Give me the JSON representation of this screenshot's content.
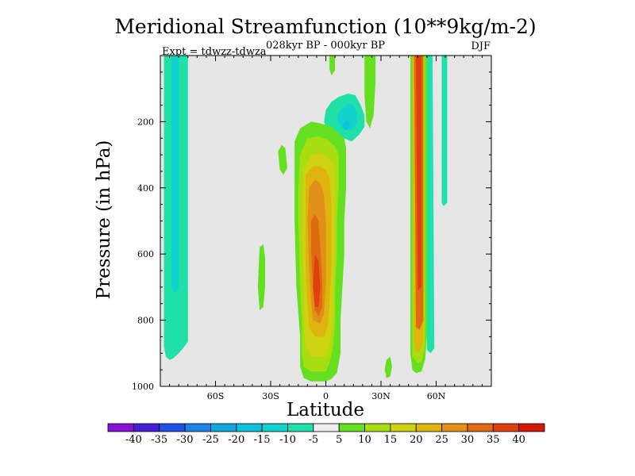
{
  "chart_data": {
    "type": "heatmap",
    "title": "Meridional Streamfunction (10**9kg/m-2)",
    "subtitle": "028kyr BP - 000kyr BP",
    "left_note": "Expt = tdwzz-tdwza",
    "season": "DJF",
    "xlabel": "Latitude",
    "ylabel": "Pressure (in hPa)",
    "xlim": [
      -90,
      90
    ],
    "ylim": [
      0,
      1000
    ],
    "y_reversed": true,
    "x_ticks": [
      {
        "value": -60,
        "label": "60S"
      },
      {
        "value": -30,
        "label": "30S"
      },
      {
        "value": 0,
        "label": "0"
      },
      {
        "value": 30,
        "label": "30N"
      },
      {
        "value": 60,
        "label": "60N"
      }
    ],
    "y_ticks": [
      {
        "value": 200,
        "label": "200"
      },
      {
        "value": 400,
        "label": "400"
      },
      {
        "value": 600,
        "label": "600"
      },
      {
        "value": 800,
        "label": "800"
      },
      {
        "value": 1000,
        "label": "1000"
      }
    ],
    "background_color": "#e6e6e6",
    "colorbar": {
      "labels": [
        "-40",
        "-35",
        "-30",
        "-25",
        "-20",
        "-15",
        "-10",
        "-5",
        "5",
        "10",
        "15",
        "20",
        "25",
        "30",
        "35",
        "40"
      ],
      "colors": [
        "#8a12d6",
        "#4520d8",
        "#2050e6",
        "#1f82e6",
        "#11a8e0",
        "#0dc0dc",
        "#11d2cc",
        "#1ee0a8",
        "#eeeeee",
        "#64e020",
        "#a6de12",
        "#cdd211",
        "#e0b40e",
        "#e09018",
        "#e06a12",
        "#e04010",
        "#d61a0a"
      ]
    },
    "contour_regions": [
      {
        "name": "sh-polar-cell",
        "value": -10,
        "points": [
          [
            -88,
            0
          ],
          [
            -75,
            0
          ],
          [
            -75,
            865
          ],
          [
            -77,
            880
          ],
          [
            -80,
            900
          ],
          [
            -83,
            915
          ],
          [
            -85,
            920
          ],
          [
            -87,
            910
          ],
          [
            -88,
            880
          ]
        ]
      },
      {
        "name": "sh-polar-core",
        "value": -15,
        "points": [
          [
            -84,
            0
          ],
          [
            -80,
            0
          ],
          [
            -80,
            700
          ],
          [
            -82,
            720
          ],
          [
            -84,
            700
          ]
        ]
      },
      {
        "name": "tropical-upper",
        "value": -10,
        "points": [
          [
            -1,
            200
          ],
          [
            0,
            165
          ],
          [
            3,
            140
          ],
          [
            7,
            125
          ],
          [
            12,
            115
          ],
          [
            16,
            120
          ],
          [
            19,
            150
          ],
          [
            21,
            180
          ],
          [
            21,
            215
          ],
          [
            18,
            240
          ],
          [
            14,
            260
          ],
          [
            10,
            250
          ],
          [
            5,
            245
          ],
          [
            1,
            230
          ]
        ]
      },
      {
        "name": "tropical-upper-mid",
        "value": -15,
        "points": [
          [
            6,
            180
          ],
          [
            9,
            160
          ],
          [
            12,
            145
          ],
          [
            15,
            150
          ],
          [
            17,
            175
          ],
          [
            17,
            205
          ],
          [
            14,
            225
          ],
          [
            10,
            225
          ],
          [
            7,
            205
          ]
        ]
      },
      {
        "name": "tropical-upper-core",
        "value": -20,
        "points": [
          [
            9,
            210
          ],
          [
            11,
            197
          ],
          [
            13,
            203
          ],
          [
            12,
            225
          ],
          [
            10,
            225
          ]
        ]
      },
      {
        "name": "nh-thin-cell",
        "value": -10,
        "points": [
          [
            55,
            0
          ],
          [
            58,
            0
          ],
          [
            59,
            885
          ],
          [
            57,
            900
          ],
          [
            55,
            890
          ]
        ]
      },
      {
        "name": "nh-thin-cell-east",
        "value": -10,
        "points": [
          [
            63,
            0
          ],
          [
            66,
            0
          ],
          [
            66,
            445
          ],
          [
            64,
            455
          ],
          [
            63,
            445
          ]
        ]
      },
      {
        "name": "hadley-cell",
        "value": 5,
        "points": [
          [
            -17,
            260
          ],
          [
            -14,
            220
          ],
          [
            -8,
            200
          ],
          [
            -3,
            205
          ],
          [
            3,
            215
          ],
          [
            7,
            235
          ],
          [
            10,
            250
          ],
          [
            11,
            280
          ],
          [
            11,
            400
          ],
          [
            10,
            500
          ],
          [
            10,
            600
          ],
          [
            9,
            700
          ],
          [
            8,
            800
          ],
          [
            8,
            900
          ],
          [
            6,
            960
          ],
          [
            3,
            978
          ],
          [
            0,
            985
          ],
          [
            -8,
            985
          ],
          [
            -12,
            975
          ],
          [
            -14,
            940
          ],
          [
            -14,
            850
          ],
          [
            -16,
            700
          ],
          [
            -17,
            500
          ]
        ]
      },
      {
        "name": "hadley-l10",
        "value": 10,
        "points": [
          [
            -14,
            300
          ],
          [
            -10,
            250
          ],
          [
            -4,
            245
          ],
          [
            1,
            255
          ],
          [
            5,
            275
          ],
          [
            7,
            300
          ],
          [
            7,
            400
          ],
          [
            6,
            500
          ],
          [
            6,
            600
          ],
          [
            5,
            700
          ],
          [
            5,
            800
          ],
          [
            4,
            880
          ],
          [
            2,
            930
          ],
          [
            0,
            955
          ],
          [
            -8,
            955
          ],
          [
            -12,
            940
          ],
          [
            -13,
            900
          ],
          [
            -13,
            800
          ],
          [
            -14,
            700
          ],
          [
            -15,
            500
          ],
          [
            -15,
            400
          ]
        ]
      },
      {
        "name": "hadley-l15",
        "value": 15,
        "points": [
          [
            -12,
            340
          ],
          [
            -8,
            300
          ],
          [
            -3,
            295
          ],
          [
            1,
            305
          ],
          [
            4,
            325
          ],
          [
            5,
            400
          ],
          [
            5,
            500
          ],
          [
            5,
            600
          ],
          [
            4,
            700
          ],
          [
            4,
            800
          ],
          [
            2,
            880
          ],
          [
            0,
            910
          ],
          [
            -8,
            910
          ],
          [
            -11,
            880
          ],
          [
            -12,
            800
          ],
          [
            -12,
            700
          ],
          [
            -13,
            550
          ],
          [
            -13,
            450
          ]
        ]
      },
      {
        "name": "hadley-l20",
        "value": 20,
        "points": [
          [
            -11,
            360
          ],
          [
            -7,
            335
          ],
          [
            -3,
            335
          ],
          [
            0,
            345
          ],
          [
            2,
            370
          ],
          [
            3,
            450
          ],
          [
            3,
            550
          ],
          [
            3,
            650
          ],
          [
            2,
            750
          ],
          [
            1,
            820
          ],
          [
            -1,
            850
          ],
          [
            -6,
            850
          ],
          [
            -9,
            820
          ],
          [
            -10,
            750
          ],
          [
            -11,
            650
          ],
          [
            -11,
            500
          ]
        ]
      },
      {
        "name": "hadley-l25",
        "value": 25,
        "points": [
          [
            -9,
            400
          ],
          [
            -6,
            375
          ],
          [
            -3,
            385
          ],
          [
            -1,
            420
          ],
          [
            0,
            500
          ],
          [
            0,
            600
          ],
          [
            0,
            700
          ],
          [
            -1,
            780
          ],
          [
            -3,
            810
          ],
          [
            -7,
            800
          ],
          [
            -8,
            750
          ],
          [
            -9,
            650
          ],
          [
            -10,
            500
          ]
        ]
      },
      {
        "name": "hadley-l30",
        "value": 30,
        "points": [
          [
            -8,
            500
          ],
          [
            -6,
            480
          ],
          [
            -4,
            500
          ],
          [
            -3,
            580
          ],
          [
            -2,
            680
          ],
          [
            -2,
            760
          ],
          [
            -4,
            790
          ],
          [
            -6,
            770
          ],
          [
            -7,
            700
          ],
          [
            -8,
            600
          ]
        ]
      },
      {
        "name": "hadley-core",
        "value": 35,
        "points": [
          [
            -6,
            600
          ],
          [
            -4,
            620
          ],
          [
            -3,
            700
          ],
          [
            -4,
            760
          ],
          [
            -6,
            760
          ],
          [
            -7,
            700
          ]
        ]
      },
      {
        "name": "nh-midlat-cell",
        "value": 5,
        "points": [
          [
            46,
            0
          ],
          [
            55,
            0
          ],
          [
            55,
            850
          ],
          [
            54,
            920
          ],
          [
            52,
            955
          ],
          [
            49,
            960
          ],
          [
            47,
            950
          ],
          [
            46,
            900
          ]
        ]
      },
      {
        "name": "nh-midlat-l10",
        "value": 10,
        "points": [
          [
            47,
            0
          ],
          [
            54,
            0
          ],
          [
            54,
            880
          ],
          [
            52,
            925
          ],
          [
            50,
            930
          ],
          [
            47,
            910
          ]
        ]
      },
      {
        "name": "nh-midlat-l20",
        "value": 20,
        "points": [
          [
            47,
            0
          ],
          [
            53,
            0
          ],
          [
            53,
            860
          ],
          [
            51,
            895
          ],
          [
            49,
            895
          ],
          [
            48,
            860
          ]
        ]
      },
      {
        "name": "nh-midlat-l30",
        "value": 30,
        "points": [
          [
            48,
            0
          ],
          [
            53,
            0
          ],
          [
            53,
            800
          ],
          [
            51,
            830
          ],
          [
            49,
            820
          ]
        ]
      },
      {
        "name": "nh-midlat-core",
        "value": 35,
        "points": [
          [
            49,
            0
          ],
          [
            52,
            0
          ],
          [
            52,
            700
          ],
          [
            50,
            710
          ]
        ]
      },
      {
        "name": "green-blob-sh",
        "value": 5,
        "points": [
          [
            -36,
            580
          ],
          [
            -34,
            570
          ],
          [
            -33,
            610
          ],
          [
            -33,
            700
          ],
          [
            -34,
            760
          ],
          [
            -36,
            770
          ],
          [
            -37,
            700
          ]
        ]
      },
      {
        "name": "green-blob-sh-upper",
        "value": 5,
        "points": [
          [
            -26,
            290
          ],
          [
            -24,
            270
          ],
          [
            -22,
            280
          ],
          [
            -21,
            340
          ],
          [
            -23,
            360
          ],
          [
            -25,
            345
          ]
        ]
      },
      {
        "name": "green-blob-nh-low",
        "value": 5,
        "points": [
          [
            33,
            920
          ],
          [
            35,
            910
          ],
          [
            36,
            940
          ],
          [
            35,
            970
          ],
          [
            33,
            975
          ],
          [
            32,
            950
          ]
        ]
      },
      {
        "name": "green-blob-polar-cap",
        "value": 5,
        "points": [
          [
            21,
            0
          ],
          [
            27,
            0
          ],
          [
            27,
            80
          ],
          [
            26,
            180
          ],
          [
            24,
            220
          ],
          [
            22,
            200
          ],
          [
            21,
            120
          ]
        ]
      },
      {
        "name": "green-blob-top",
        "value": 5,
        "points": [
          [
            2,
            0
          ],
          [
            5,
            0
          ],
          [
            5,
            45
          ],
          [
            3,
            60
          ],
          [
            2,
            40
          ]
        ]
      }
    ]
  }
}
